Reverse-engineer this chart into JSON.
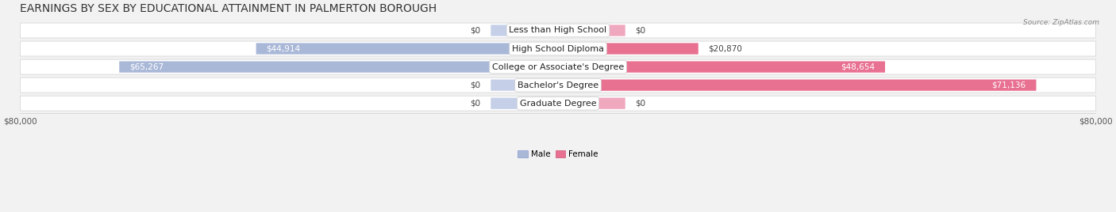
{
  "title": "EARNINGS BY SEX BY EDUCATIONAL ATTAINMENT IN PALMERTON BOROUGH",
  "source": "Source: ZipAtlas.com",
  "categories": [
    "Less than High School",
    "High School Diploma",
    "College or Associate's Degree",
    "Bachelor's Degree",
    "Graduate Degree"
  ],
  "male_values": [
    0,
    44914,
    65267,
    0,
    0
  ],
  "female_values": [
    0,
    20870,
    48654,
    71136,
    0
  ],
  "male_color": "#aab8d8",
  "female_color": "#e87090",
  "male_stub_color": "#c5d0e8",
  "female_stub_color": "#f0a8be",
  "max_value": 80000,
  "stub_size": 10000,
  "bg_color": "#f2f2f2",
  "row_bg_color": "#ffffff",
  "row_border_color": "#d8d8d8",
  "title_fontsize": 10,
  "label_fontsize": 8,
  "value_fontsize": 7.5,
  "male_label_texts": [
    "$0",
    "$44,914",
    "$65,267",
    "$0",
    "$0"
  ],
  "female_label_texts": [
    "$0",
    "$20,870",
    "$48,654",
    "$71,136",
    "$0"
  ],
  "legend_male_color": "#aab8d8",
  "legend_female_color": "#e87090"
}
